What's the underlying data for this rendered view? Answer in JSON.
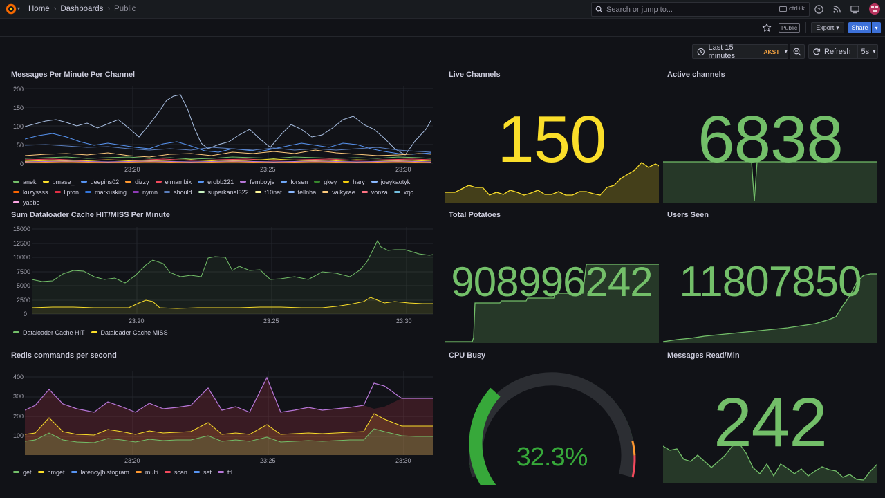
{
  "nav": {
    "breadcrumbs": [
      "Home",
      "Dashboards",
      "Public"
    ],
    "search_placeholder": "Search or jump to...",
    "search_shortcut": "ctrl+k",
    "public_badge": "Public",
    "export_label": "Export",
    "share_label": "Share"
  },
  "toolbar": {
    "time_range": "Last 15 minutes",
    "timezone": "AKST",
    "refresh_label": "Refresh",
    "refresh_interval": "5s"
  },
  "time_ticks": [
    "23:20",
    "23:25",
    "23:30"
  ],
  "colors": {
    "green": "#73bf69",
    "yellow": "#fade2a",
    "blue": "#5794f2",
    "orange": "#ff9830",
    "red": "#f2495c",
    "purple": "#b877d9",
    "bg": "#111217"
  },
  "panels": {
    "messages_per_minute": {
      "title": "Messages Per Minute Per Channel",
      "y_ticks": [
        "200",
        "150",
        "100",
        "50",
        "0"
      ],
      "legend": [
        {
          "name": "anek",
          "color": "#73bf69"
        },
        {
          "name": "bmase_",
          "color": "#fade2a"
        },
        {
          "name": "deepins02",
          "color": "#5794f2"
        },
        {
          "name": "dizzy",
          "color": "#ff9830"
        },
        {
          "name": "elmambix",
          "color": "#f2495c"
        },
        {
          "name": "erobb221",
          "color": "#5794f2"
        },
        {
          "name": "femboyjs",
          "color": "#b877d9"
        },
        {
          "name": "forsen",
          "color": "#6ea6f5"
        },
        {
          "name": "gkey",
          "color": "#37872d"
        },
        {
          "name": "hary",
          "color": "#f2cc0c"
        },
        {
          "name": "joeykaotyk",
          "color": "#8ab8ff"
        },
        {
          "name": "kuzyssss",
          "color": "#fa6400"
        },
        {
          "name": "lipton",
          "color": "#e02f44"
        },
        {
          "name": "markusking",
          "color": "#3274d9"
        },
        {
          "name": "nymn",
          "color": "#8f3bb8"
        },
        {
          "name": "should",
          "color": "#5a7ebd"
        },
        {
          "name": "superkanal322",
          "color": "#c8f2c2"
        },
        {
          "name": "t10nat",
          "color": "#fff899"
        },
        {
          "name": "tellnha",
          "color": "#8ab8ff"
        },
        {
          "name": "valkyrae",
          "color": "#ffcb7d"
        },
        {
          "name": "vonza",
          "color": "#ff7383"
        },
        {
          "name": "xqc",
          "color": "#73bfe0"
        },
        {
          "name": "yabbe",
          "color": "#ffa6e6"
        }
      ]
    },
    "dataloader_cache": {
      "title": "Sum Dataloader Cache HIT/MISS Per Minute",
      "y_ticks": [
        "15000",
        "12500",
        "10000",
        "7500",
        "5000",
        "2500",
        "0"
      ],
      "legend": [
        {
          "name": "Dataloader Cache HIT",
          "color": "#73bf69"
        },
        {
          "name": "Dataloader Cache MISS",
          "color": "#fade2a"
        }
      ]
    },
    "redis_commands": {
      "title": "Redis commands per second",
      "y_ticks": [
        "400",
        "300",
        "200",
        "100"
      ],
      "legend": [
        {
          "name": "get",
          "color": "#73bf69"
        },
        {
          "name": "hmget",
          "color": "#fade2a"
        },
        {
          "name": "latency|histogram",
          "color": "#5794f2"
        },
        {
          "name": "multi",
          "color": "#ff9830"
        },
        {
          "name": "scan",
          "color": "#f2495c"
        },
        {
          "name": "set",
          "color": "#5794f2"
        },
        {
          "name": "ttl",
          "color": "#b877d9"
        }
      ]
    },
    "live_channels": {
      "title": "Live Channels",
      "value": "150",
      "color": "#fade2a"
    },
    "active_channels": {
      "title": "Active channels",
      "value": "6838",
      "color": "#73bf69"
    },
    "total_potatoes": {
      "title": "Total Potatoes",
      "value": "908996242",
      "color": "#73bf69"
    },
    "users_seen": {
      "title": "Users Seen",
      "value": "11807850",
      "color": "#73bf69"
    },
    "cpu_busy": {
      "title": "CPU Busy",
      "value": "32.3%",
      "percent": 32.3,
      "color": "#37a83a"
    },
    "messages_read": {
      "title": "Messages Read/Min",
      "value": "242",
      "color": "#73bf69"
    }
  }
}
